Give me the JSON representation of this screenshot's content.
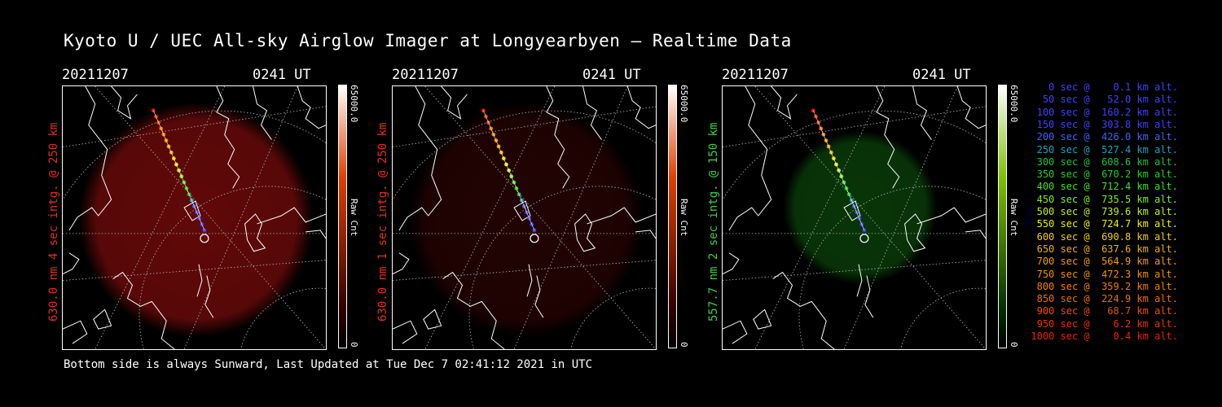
{
  "title": "Kyoto U / UEC All-sky Airglow Imager at Longyearbyen — Realtime Data",
  "footer": "Bottom side is always Sunward, Last Updated at Tue Dec  7 02:41:12 2021 in UTC",
  "panels": [
    {
      "date": "20211207",
      "time": "0241 UT",
      "ylabel": "630.0 nm  4 sec intg. @ 250 km",
      "label_color": "#e03020",
      "glow_color": "#b01010",
      "glow_opacity": 0.55,
      "colorbar": {
        "max": "65000.0",
        "min": "0",
        "unit": "Raw Cnt",
        "top": "#ffffff",
        "mid": "#e04000",
        "bottom": "#300000"
      }
    },
    {
      "date": "20211207",
      "time": "0241 UT",
      "ylabel": "630.0 nm  1 sec intg. @ 250 km",
      "label_color": "#e03020",
      "glow_color": "#600808",
      "glow_opacity": 0.35,
      "colorbar": {
        "max": "65000.0",
        "min": "0",
        "unit": "Raw Cnt",
        "top": "#ffffff",
        "mid": "#e04000",
        "bottom": "#300000"
      }
    },
    {
      "date": "20211207",
      "time": "0241 UT",
      "ylabel": "557.7 nm  2 sec intg. @ 150 km",
      "label_color": "#40d040",
      "glow_color": "#0e5a0e",
      "glow_opacity": 0.6,
      "colorbar": {
        "max": "65000.0",
        "min": "0",
        "unit": "Raw Cnt",
        "top": "#ffffff",
        "mid": "#80c000",
        "bottom": "#003000"
      }
    }
  ],
  "legend": [
    {
      "text": "   0 sec @    0.1 km alt.",
      "color": "#4040ff"
    },
    {
      "text": "  50 sec @   52.0 km alt.",
      "color": "#4040ff"
    },
    {
      "text": " 100 sec @  160.2 km alt.",
      "color": "#4040ff"
    },
    {
      "text": " 150 sec @  303.8 km alt.",
      "color": "#4040ff"
    },
    {
      "text": " 200 sec @  426.0 km alt.",
      "color": "#4060ff"
    },
    {
      "text": " 250 sec @  527.4 km alt.",
      "color": "#20a0c0"
    },
    {
      "text": " 300 sec @  608.6 km alt.",
      "color": "#20c040"
    },
    {
      "text": " 350 sec @  670.2 km alt.",
      "color": "#20d020"
    },
    {
      "text": " 400 sec @  712.4 km alt.",
      "color": "#40e020"
    },
    {
      "text": " 450 sec @  735.5 km alt.",
      "color": "#80f020"
    },
    {
      "text": " 500 sec @  739.6 km alt.",
      "color": "#c0f020"
    },
    {
      "text": " 550 sec @  724.7 km alt.",
      "color": "#f0f000"
    },
    {
      "text": " 600 sec @  690.8 km alt.",
      "color": "#f0d000"
    },
    {
      "text": " 650 sec @  637.6 km alt.",
      "color": "#f0b000"
    },
    {
      "text": " 700 sec @  564.9 km alt.",
      "color": "#f0a000"
    },
    {
      "text": " 750 sec @  472.3 km alt.",
      "color": "#f09000"
    },
    {
      "text": " 800 sec @  359.2 km alt.",
      "color": "#f08000"
    },
    {
      "text": " 850 sec @  224.9 km alt.",
      "color": "#f07000"
    },
    {
      "text": " 900 sec @   68.7 km alt.",
      "color": "#f05000"
    },
    {
      "text": " 950 sec @    6.2 km alt.",
      "color": "#f03000"
    },
    {
      "text": "1000 sec @    0.4 km alt.",
      "color": "#f02000"
    }
  ]
}
